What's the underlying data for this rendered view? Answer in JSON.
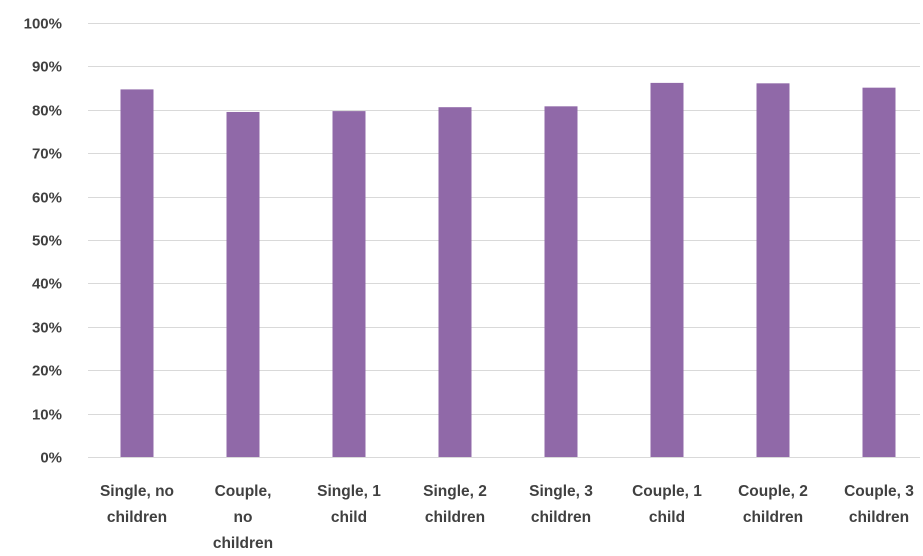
{
  "chart_data": {
    "type": "bar",
    "categories": [
      "Single, no children",
      "Couple, no children",
      "Single, 1 child",
      "Single, 2 children",
      "Single, 3 children",
      "Couple, 1 child",
      "Couple, 2 children",
      "Couple, 3 children"
    ],
    "category_lines": [
      [
        "Single, no",
        "children"
      ],
      [
        "Couple,",
        "no",
        "children"
      ],
      [
        "Single, 1",
        "child"
      ],
      [
        "Single, 2",
        "children"
      ],
      [
        "Single, 3",
        "children"
      ],
      [
        "Couple, 1",
        "child"
      ],
      [
        "Couple, 2",
        "children"
      ],
      [
        "Couple, 3",
        "children"
      ]
    ],
    "values": [
      84.7,
      79.5,
      79.7,
      80.6,
      80.8,
      86.2,
      86.1,
      85.1
    ],
    "ylim": [
      0,
      100
    ],
    "yticks": [
      "0%",
      "10%",
      "20%",
      "30%",
      "40%",
      "50%",
      "60%",
      "70%",
      "80%",
      "90%",
      "100%"
    ],
    "title": "",
    "xlabel": "",
    "ylabel": "",
    "grid": true,
    "legend": "none",
    "bar_color": "#9069a8"
  }
}
